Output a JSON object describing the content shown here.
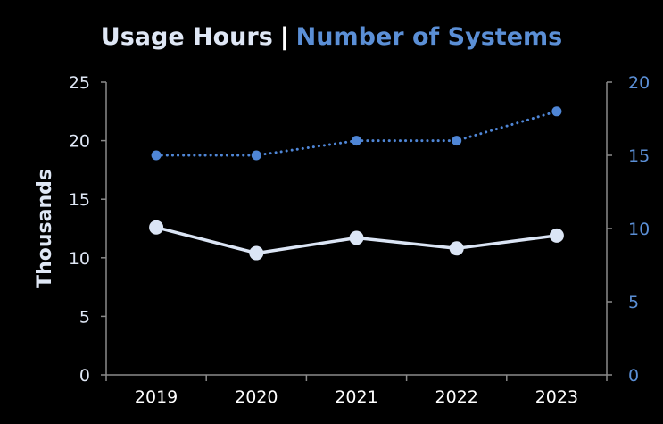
{
  "chart_data": {
    "type": "line",
    "title_parts": [
      "Usage Hours",
      "|",
      "Number of Systems"
    ],
    "categories": [
      "2019",
      "2020",
      "2021",
      "2022",
      "2023"
    ],
    "y_left": {
      "label": "Thousands",
      "ticks": [
        "0",
        "5",
        "10",
        "15",
        "20",
        "25"
      ],
      "ylim": [
        0,
        25
      ]
    },
    "y_right": {
      "label": "",
      "ticks": [
        "0",
        "5",
        "10",
        "15",
        "20"
      ],
      "ylim": [
        0,
        20
      ]
    },
    "series": [
      {
        "axis": "left",
        "style": "solid",
        "color": "#dbe5f5",
        "values": [
          12.6,
          10.4,
          11.7,
          10.8,
          11.9
        ]
      },
      {
        "axis": "right",
        "style": "dotted",
        "color": "#4f86d6",
        "values": [
          15,
          15,
          16,
          16,
          18
        ]
      }
    ],
    "grid": false,
    "legend": "none"
  },
  "colors": {
    "background": "#000000",
    "left_axis": "#dfe7f5",
    "right_axis": "#5b8fd6"
  }
}
